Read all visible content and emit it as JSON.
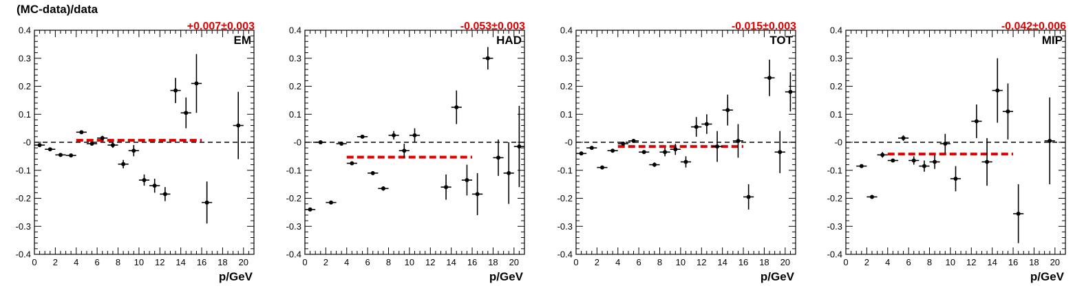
{
  "y_axis_label": "(MC-data)/data",
  "colors": {
    "fit": "#e00000",
    "points": "#000000",
    "zero_line": "#000000"
  },
  "chart_data": [
    {
      "type": "scatter",
      "title": "EM",
      "offset_label": "+0.007±0.003",
      "xlabel": "p/GeV",
      "xlim": [
        0,
        21
      ],
      "ylim": [
        -0.4,
        0.4
      ],
      "xticks": [
        "0",
        "2",
        "4",
        "6",
        "8",
        "10",
        "12",
        "14",
        "16",
        "18",
        "20"
      ],
      "yticks": [
        "-0.4",
        "-0.3",
        "-0.2",
        "-0.1",
        "-0",
        "0.1",
        "0.2",
        "0.3",
        "0.4"
      ],
      "fit": {
        "x": [
          4,
          16
        ],
        "y": 0.007
      },
      "points": [
        {
          "x": 0.5,
          "y": -0.01,
          "err": 0.004
        },
        {
          "x": 1.5,
          "y": -0.025,
          "err": 0.004
        },
        {
          "x": 2.5,
          "y": -0.045,
          "err": 0.004
        },
        {
          "x": 3.5,
          "y": -0.047,
          "err": 0.004
        },
        {
          "x": 4.5,
          "y": 0.036,
          "err": 0.006
        },
        {
          "x": 5.5,
          "y": -0.005,
          "err": 0.006
        },
        {
          "x": 6.5,
          "y": 0.015,
          "err": 0.008
        },
        {
          "x": 7.5,
          "y": -0.01,
          "err": 0.01
        },
        {
          "x": 8.5,
          "y": -0.078,
          "err": 0.015
        },
        {
          "x": 9.5,
          "y": -0.03,
          "err": 0.02
        },
        {
          "x": 10.5,
          "y": -0.135,
          "err": 0.02
        },
        {
          "x": 11.5,
          "y": -0.155,
          "err": 0.025
        },
        {
          "x": 12.5,
          "y": -0.185,
          "err": 0.025
        },
        {
          "x": 13.5,
          "y": 0.185,
          "err": 0.045
        },
        {
          "x": 14.5,
          "y": 0.105,
          "err": 0.055
        },
        {
          "x": 15.5,
          "y": 0.21,
          "err": 0.105
        },
        {
          "x": 16.5,
          "y": -0.215,
          "err": 0.075
        },
        {
          "x": 19.5,
          "y": 0.06,
          "err": 0.12
        }
      ]
    },
    {
      "type": "scatter",
      "title": "HAD",
      "offset_label": "-0.053±0.003",
      "xlabel": "p/GeV",
      "xlim": [
        0,
        21
      ],
      "ylim": [
        -0.4,
        0.4
      ],
      "xticks": [
        "0",
        "2",
        "4",
        "6",
        "8",
        "10",
        "12",
        "14",
        "16",
        "18",
        "20"
      ],
      "yticks": [
        "-0.4",
        "-0.3",
        "-0.2",
        "-0.1",
        "-0",
        "0.1",
        "0.2",
        "0.3",
        "0.4"
      ],
      "fit": {
        "x": [
          4,
          16
        ],
        "y": -0.053
      },
      "points": [
        {
          "x": 0.5,
          "y": -0.24,
          "err": 0.006
        },
        {
          "x": 1.5,
          "y": 0.0,
          "err": 0.004
        },
        {
          "x": 2.5,
          "y": -0.215,
          "err": 0.005
        },
        {
          "x": 3.5,
          "y": -0.005,
          "err": 0.005
        },
        {
          "x": 4.5,
          "y": -0.075,
          "err": 0.005
        },
        {
          "x": 5.5,
          "y": 0.02,
          "err": 0.005
        },
        {
          "x": 6.5,
          "y": -0.11,
          "err": 0.006
        },
        {
          "x": 7.5,
          "y": -0.165,
          "err": 0.008
        },
        {
          "x": 8.5,
          "y": 0.025,
          "err": 0.015
        },
        {
          "x": 9.5,
          "y": -0.03,
          "err": 0.025
        },
        {
          "x": 10.5,
          "y": 0.025,
          "err": 0.025
        },
        {
          "x": 13.5,
          "y": -0.16,
          "err": 0.045
        },
        {
          "x": 14.5,
          "y": 0.125,
          "err": 0.06
        },
        {
          "x": 15.5,
          "y": -0.135,
          "err": 0.055
        },
        {
          "x": 16.5,
          "y": -0.185,
          "err": 0.075
        },
        {
          "x": 17.5,
          "y": 0.3,
          "err": 0.04
        },
        {
          "x": 18.5,
          "y": -0.055,
          "err": 0.065
        },
        {
          "x": 19.5,
          "y": -0.11,
          "err": 0.11
        },
        {
          "x": 20.5,
          "y": -0.015,
          "err": 0.145
        }
      ]
    },
    {
      "type": "scatter",
      "title": "TOT",
      "offset_label": "-0.015±0.003",
      "xlabel": "p/GeV",
      "xlim": [
        0,
        21
      ],
      "ylim": [
        -0.4,
        0.4
      ],
      "xticks": [
        "0",
        "2",
        "4",
        "6",
        "8",
        "10",
        "12",
        "14",
        "16",
        "18",
        "20"
      ],
      "yticks": [
        "-0.4",
        "-0.3",
        "-0.2",
        "-0.1",
        "-0",
        "0.1",
        "0.2",
        "0.3",
        "0.4"
      ],
      "fit": {
        "x": [
          4,
          16
        ],
        "y": -0.015
      },
      "points": [
        {
          "x": 0.5,
          "y": -0.04,
          "err": 0.004
        },
        {
          "x": 1.5,
          "y": -0.02,
          "err": 0.004
        },
        {
          "x": 2.5,
          "y": -0.09,
          "err": 0.005
        },
        {
          "x": 3.5,
          "y": -0.03,
          "err": 0.005
        },
        {
          "x": 4.5,
          "y": -0.005,
          "err": 0.005
        },
        {
          "x": 5.5,
          "y": 0.005,
          "err": 0.005
        },
        {
          "x": 6.5,
          "y": -0.035,
          "err": 0.006
        },
        {
          "x": 7.5,
          "y": -0.08,
          "err": 0.008
        },
        {
          "x": 8.5,
          "y": -0.035,
          "err": 0.015
        },
        {
          "x": 9.5,
          "y": -0.025,
          "err": 0.02
        },
        {
          "x": 10.5,
          "y": -0.07,
          "err": 0.02
        },
        {
          "x": 11.5,
          "y": 0.055,
          "err": 0.035
        },
        {
          "x": 12.5,
          "y": 0.065,
          "err": 0.035
        },
        {
          "x": 13.5,
          "y": -0.015,
          "err": 0.055
        },
        {
          "x": 14.5,
          "y": 0.115,
          "err": 0.055
        },
        {
          "x": 15.5,
          "y": 0.005,
          "err": 0.06
        },
        {
          "x": 16.5,
          "y": -0.195,
          "err": 0.045
        },
        {
          "x": 18.5,
          "y": 0.23,
          "err": 0.065
        },
        {
          "x": 19.5,
          "y": -0.035,
          "err": 0.075
        },
        {
          "x": 20.5,
          "y": 0.18,
          "err": 0.07
        }
      ]
    },
    {
      "type": "scatter",
      "title": "MIP",
      "offset_label": "-0.042±0.006",
      "xlabel": "p/GeV",
      "xlim": [
        0,
        21
      ],
      "ylim": [
        -0.4,
        0.4
      ],
      "xticks": [
        "0",
        "2",
        "4",
        "6",
        "8",
        "10",
        "12",
        "14",
        "16",
        "18",
        "20"
      ],
      "yticks": [
        "-0.4",
        "-0.3",
        "-0.2",
        "-0.1",
        "-0",
        "0.1",
        "0.2",
        "0.3",
        "0.4"
      ],
      "fit": {
        "x": [
          4,
          16
        ],
        "y": -0.042
      },
      "points": [
        {
          "x": 1.5,
          "y": -0.085,
          "err": 0.004
        },
        {
          "x": 2.5,
          "y": -0.195,
          "err": 0.004
        },
        {
          "x": 3.5,
          "y": -0.045,
          "err": 0.01
        },
        {
          "x": 4.5,
          "y": -0.065,
          "err": 0.006
        },
        {
          "x": 5.5,
          "y": 0.015,
          "err": 0.01
        },
        {
          "x": 6.5,
          "y": -0.065,
          "err": 0.015
        },
        {
          "x": 7.5,
          "y": -0.085,
          "err": 0.02
        },
        {
          "x": 8.5,
          "y": -0.07,
          "err": 0.025
        },
        {
          "x": 9.5,
          "y": -0.005,
          "err": 0.035
        },
        {
          "x": 10.5,
          "y": -0.13,
          "err": 0.045
        },
        {
          "x": 12.5,
          "y": 0.075,
          "err": 0.06
        },
        {
          "x": 13.5,
          "y": -0.07,
          "err": 0.085
        },
        {
          "x": 14.5,
          "y": 0.185,
          "err": 0.115
        },
        {
          "x": 15.5,
          "y": 0.11,
          "err": 0.1
        },
        {
          "x": 16.5,
          "y": -0.255,
          "err": 0.105
        },
        {
          "x": 19.5,
          "y": 0.005,
          "err": 0.155
        }
      ]
    }
  ]
}
